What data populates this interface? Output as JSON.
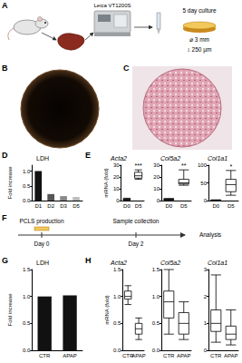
{
  "panel_labels": [
    "A",
    "B",
    "C",
    "D",
    "E",
    "F",
    "G",
    "H"
  ],
  "schematic": {
    "instrument": "Leica VT1200S",
    "culture": "5 day culture",
    "diameter": "⌀ 3 mm",
    "thickness": "↕ 250 µm"
  },
  "timeline": {
    "production": "PCLS production",
    "collection": "Sample collection",
    "start": "Day 0",
    "end": "Day 2",
    "analysis": "Analysis"
  },
  "chart_data": [
    {
      "type": "bar",
      "title": "LDH",
      "y_label": "Fold increase",
      "categories": [
        "D1",
        "D2",
        "D3",
        "D5"
      ],
      "values": [
        1.0,
        0.22,
        0.15,
        0.12
      ],
      "colors": [
        "#111111",
        "#555555",
        "#888888",
        "#bbbbbb"
      ],
      "ylim": [
        0,
        1.2
      ],
      "yticks": [
        {
          "value": 0,
          "label": "0.0"
        },
        0.5,
        {
          "value": 1,
          "label": "1.0"
        }
      ]
    },
    {
      "type": "boxplot",
      "title": "Acta2",
      "y_label": "mRNA (fold)",
      "categories": [
        "D0",
        "D5"
      ],
      "boxes": [
        [
          0.5,
          0.8,
          1,
          1.3,
          2
        ],
        [
          18,
          19,
          21,
          24,
          26
        ]
      ],
      "annotation": {
        "category": "D5",
        "text": "***"
      },
      "ylim": [
        0,
        30
      ],
      "yticks": [
        0,
        10,
        20,
        30
      ]
    },
    {
      "type": "boxplot",
      "title": "Col5a2",
      "categories": [
        "D0",
        "D5"
      ],
      "boxes": [
        [
          0.5,
          0.8,
          1,
          1.2,
          1.8
        ],
        [
          13,
          14,
          15,
          18,
          26
        ]
      ],
      "annotation": {
        "category": "D5",
        "text": "**"
      },
      "ylim": [
        0,
        30
      ],
      "yticks": [
        0,
        10,
        20,
        30
      ]
    },
    {
      "type": "boxplot",
      "title": "Col1a1",
      "categories": [
        "D0",
        "D5"
      ],
      "boxes": [
        [
          0.5,
          0.8,
          1,
          1.2,
          2
        ],
        [
          15,
          25,
          45,
          60,
          85
        ]
      ],
      "annotation": {
        "category": "D5",
        "text": "*"
      },
      "ylim": [
        0,
        100
      ],
      "yticks": [
        0,
        50,
        100
      ]
    },
    {
      "type": "bar",
      "title": "LDH",
      "y_label": "Fold increase",
      "categories": [
        "CTR",
        "APAP"
      ],
      "values": [
        1.0,
        1.02
      ],
      "colors": [
        "#111111",
        "#111111"
      ],
      "ylim": [
        0,
        1.5
      ],
      "yticks": [
        {
          "value": 0,
          "label": "0.0"
        },
        0.5,
        {
          "value": 1,
          "label": "1.0"
        },
        1.5
      ]
    },
    {
      "type": "boxplot",
      "title": "Acta2",
      "y_label": "mRNA (fold)",
      "categories": [
        "CTR",
        "APAP"
      ],
      "boxes": [
        [
          0.85,
          0.95,
          1.0,
          1.1,
          1.2
        ],
        [
          0.2,
          0.3,
          0.4,
          0.5,
          0.6
        ]
      ],
      "ylim": [
        0,
        1.5
      ],
      "yticks": [
        {
          "value": 0,
          "label": "0.0"
        },
        0.5,
        {
          "value": 1,
          "label": "1.0"
        },
        1.5
      ]
    },
    {
      "type": "boxplot",
      "title": "Col5a2",
      "categories": [
        "CTR",
        "APAP"
      ],
      "boxes": [
        [
          0.3,
          0.6,
          0.9,
          1.1,
          1.5
        ],
        [
          0.2,
          0.3,
          0.5,
          0.7,
          0.9
        ]
      ],
      "ylim": [
        0,
        1.5
      ],
      "yticks": [
        {
          "value": 0,
          "label": "0.0"
        },
        0.5,
        {
          "value": 1,
          "label": "1.0"
        },
        1.5
      ]
    },
    {
      "type": "boxplot",
      "title": "Col1a1",
      "categories": [
        "CTR",
        "APAP"
      ],
      "boxes": [
        [
          0.3,
          0.7,
          1.0,
          1.5,
          2.8
        ],
        [
          0.2,
          0.4,
          0.6,
          0.9,
          1.5
        ]
      ],
      "ylim": [
        0,
        3
      ],
      "yticks": [
        0,
        1,
        2,
        3
      ]
    }
  ]
}
